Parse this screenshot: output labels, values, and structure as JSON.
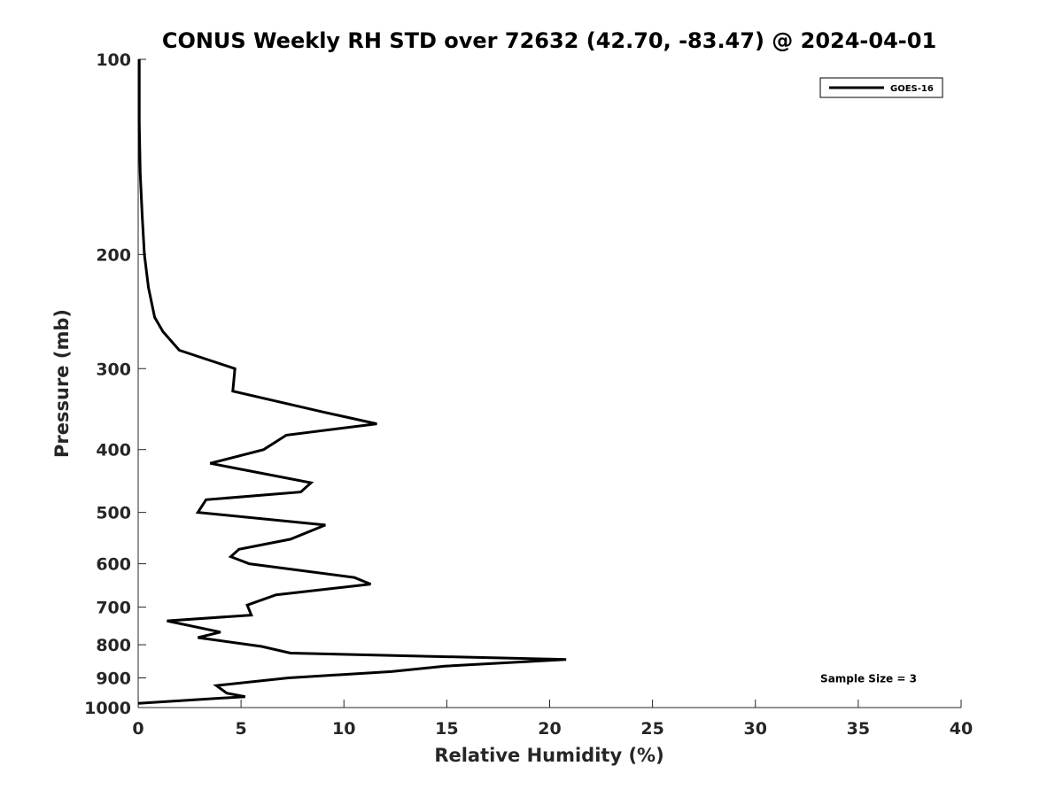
{
  "chart_data": {
    "type": "line",
    "title": "CONUS Weekly RH STD over 72632 (42.70, -83.47) @ 2024-04-01",
    "xlabel": "Relative Humidity (%)",
    "ylabel": "Pressure (mb)",
    "xlim": [
      0,
      40
    ],
    "ylim": [
      100,
      1000
    ],
    "y_scale": "log",
    "y_reversed": true,
    "grid": false,
    "legend_position": "top-right",
    "x_ticks": [
      0,
      5,
      10,
      15,
      20,
      25,
      30,
      35,
      40
    ],
    "x_tick_labels": [
      "0",
      "5",
      "10",
      "15",
      "20",
      "25",
      "30",
      "35",
      "40"
    ],
    "y_ticks": [
      100,
      200,
      300,
      400,
      500,
      600,
      700,
      800,
      900,
      1000
    ],
    "y_tick_labels": [
      "100",
      "200",
      "300",
      "400",
      "500",
      "600",
      "700",
      "800",
      "900",
      "1000"
    ],
    "series": [
      {
        "name": "GOES-16",
        "color": "#000000",
        "x": [
          0.05,
          0.05,
          0.05,
          0.1,
          0.2,
          0.3,
          0.5,
          0.8,
          1.2,
          2.0,
          4.7,
          4.6,
          9.0,
          11.6,
          7.2,
          6.1,
          3.5,
          8.4,
          7.9,
          3.3,
          2.9,
          9.1,
          7.4,
          4.9,
          4.5,
          5.4,
          10.5,
          11.3,
          6.7,
          5.3,
          5.5,
          1.4,
          4.0,
          2.9,
          6.0,
          7.4,
          20.8,
          14.9,
          12.3,
          7.3,
          3.8,
          4.3,
          5.2,
          0.0
        ],
        "y": [
          100,
          110,
          125,
          150,
          175,
          200,
          225,
          250,
          263,
          281,
          300,
          325,
          350,
          365,
          380,
          400,
          420,
          450,
          465,
          478,
          500,
          523,
          550,
          570,
          585,
          600,
          630,
          645,
          670,
          695,
          720,
          735,
          765,
          780,
          805,
          824,
          843,
          863,
          880,
          900,
          925,
          950,
          962,
          985
        ]
      }
    ],
    "annotations": [
      {
        "text": "Sample Size = 3",
        "x": 35.5,
        "y": 900
      }
    ]
  }
}
